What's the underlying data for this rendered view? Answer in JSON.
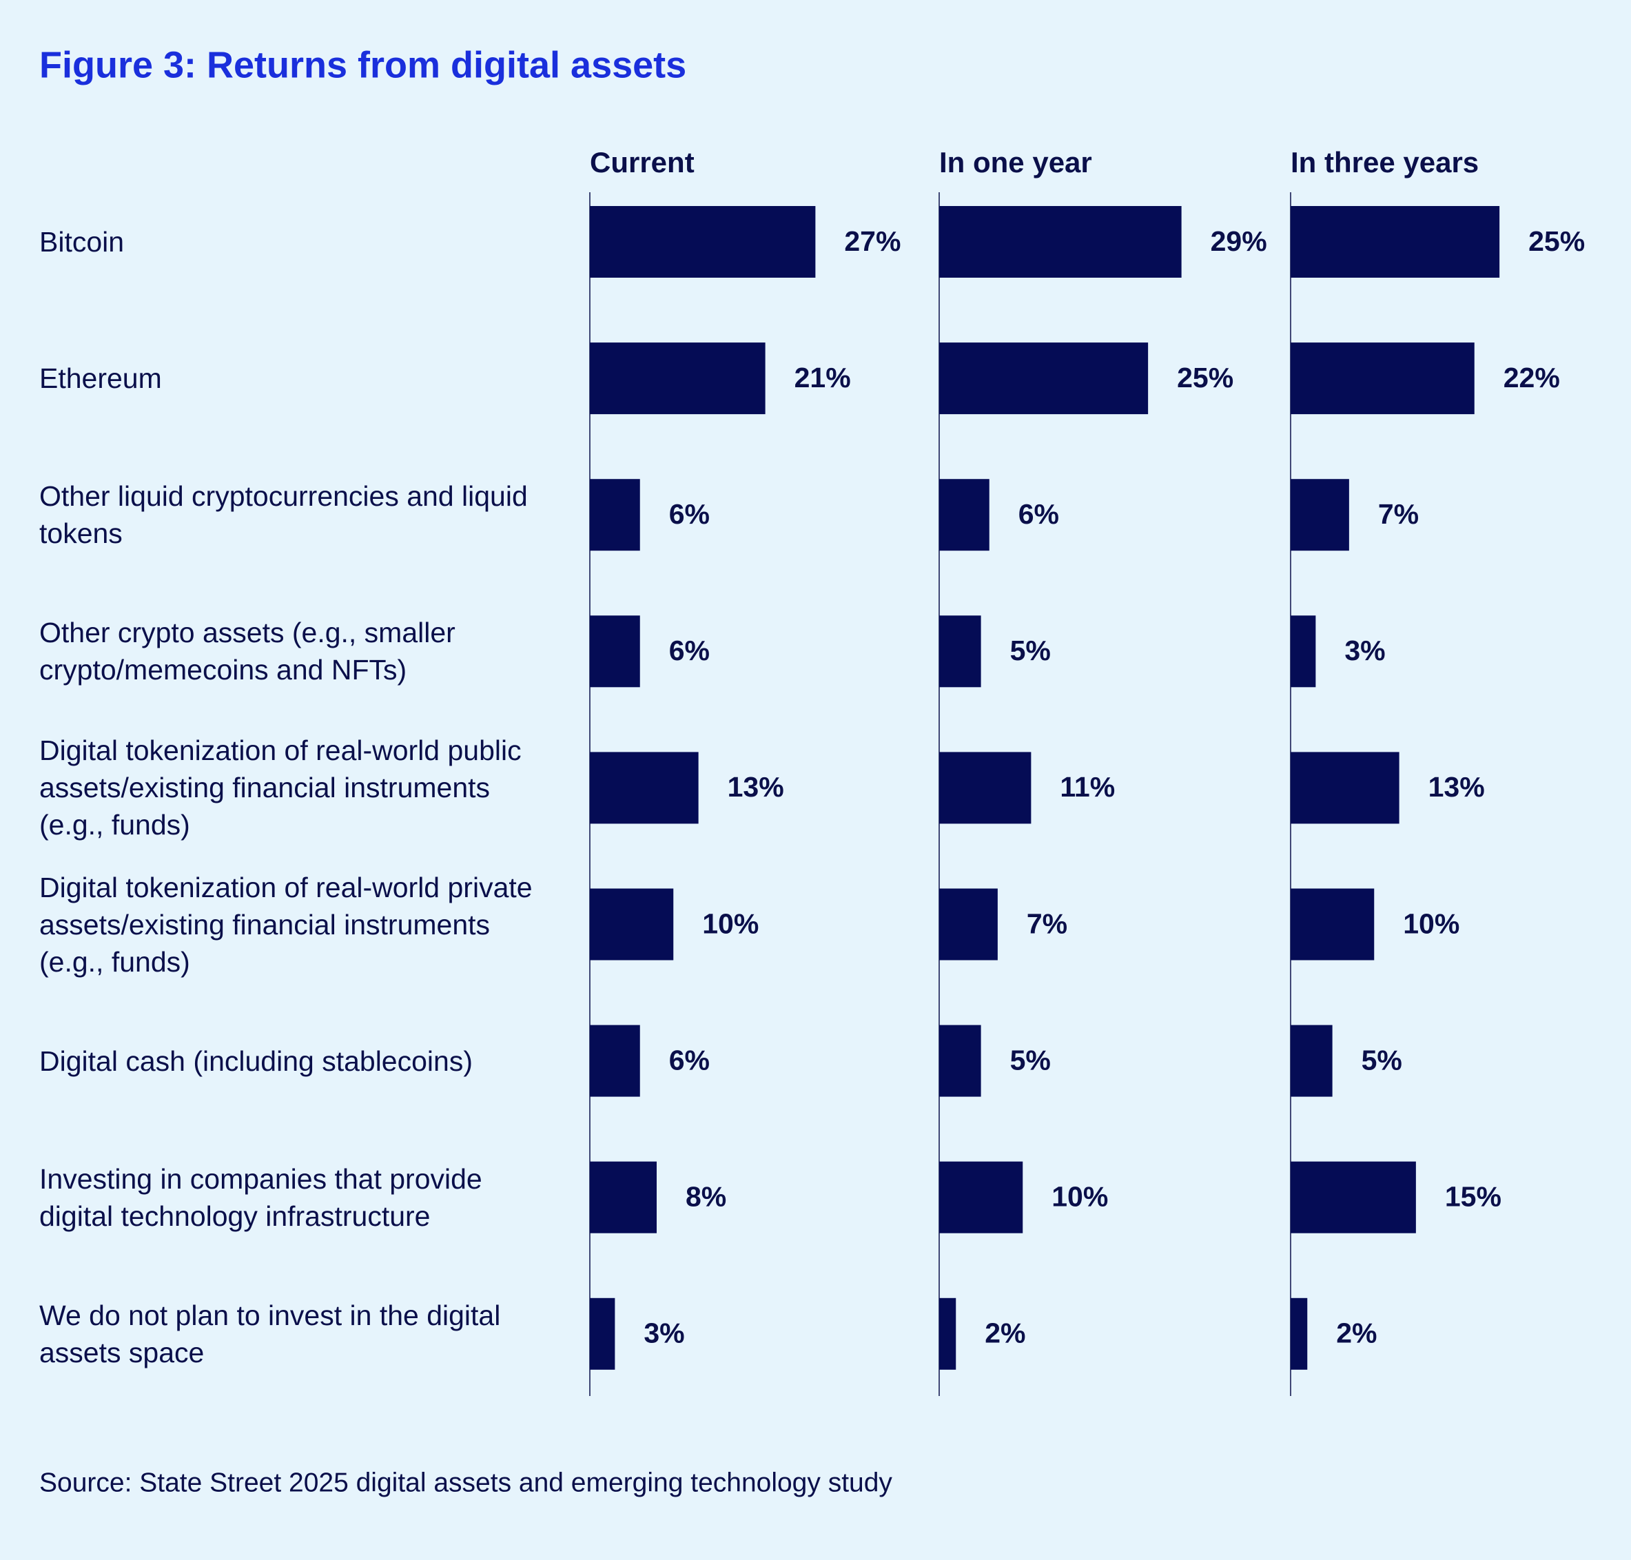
{
  "chart_data": {
    "type": "bar",
    "title": "Figure 3: Returns from digital assets",
    "categories": [
      "Bitcoin",
      "Ethereum",
      "Other liquid cryptocurrencies and liquid tokens",
      "Other crypto assets (e.g., smaller crypto/memecoins and NFTs)",
      "Digital tokenization of real-world public assets/existing financial instruments (e.g., funds)",
      "Digital tokenization of real-world private assets/existing financial instruments (e.g., funds)",
      "Digital cash (including stablecoins)",
      "Investing in companies that provide digital technology infrastructure",
      "We do not plan to invest in the digital assets space"
    ],
    "series": [
      {
        "name": "Current",
        "color": "#050c55",
        "values": [
          27,
          21,
          6,
          6,
          13,
          10,
          6,
          8,
          3
        ],
        "value_labels": [
          "27%",
          "21%",
          "6%",
          "6%",
          "13%",
          "10%",
          "6%",
          "8%",
          "3%"
        ]
      },
      {
        "name": "In one year",
        "color": "#050c55",
        "values": [
          29,
          25,
          6,
          5,
          11,
          7,
          5,
          10,
          2
        ],
        "value_labels": [
          "29%",
          "25%",
          "6%",
          "5%",
          "11%",
          "7%",
          "5%",
          "10%",
          "2%"
        ]
      },
      {
        "name": "In three years",
        "color": "#050c55",
        "values": [
          25,
          22,
          7,
          3,
          13,
          10,
          5,
          15,
          2
        ],
        "value_labels": [
          "25%",
          "22%",
          "7%",
          "3%",
          "13%",
          "10%",
          "5%",
          "15%",
          "2%"
        ]
      }
    ],
    "xlim": [
      0,
      40
    ],
    "source": "Source: State Street 2025 digital assets and emerging technology study"
  }
}
